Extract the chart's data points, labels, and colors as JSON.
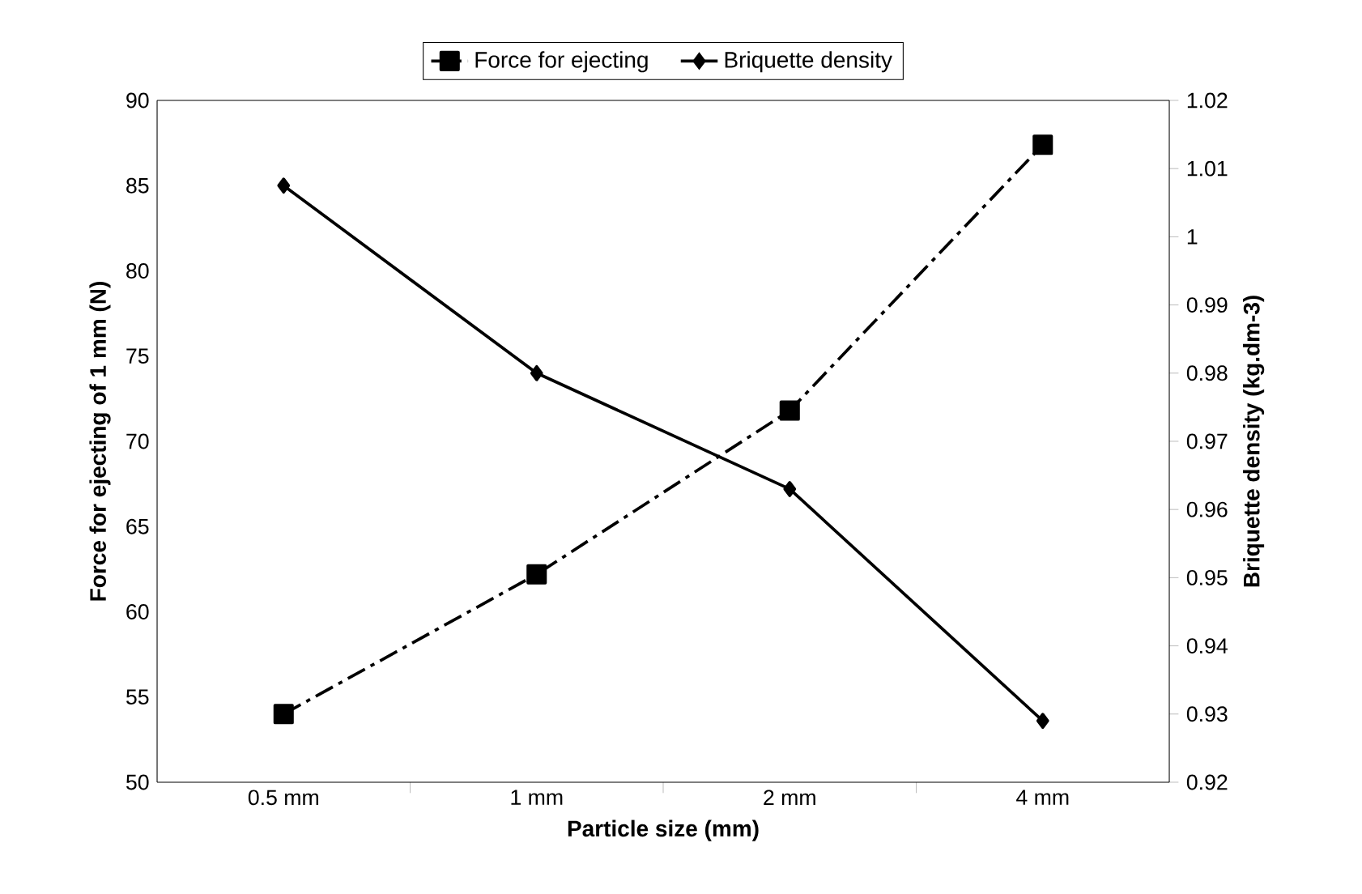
{
  "chart_data": {
    "type": "line",
    "xlabel": "Particle size (mm)",
    "ylabel": "Force for ejecting of 1 mm (N)",
    "y2label": "Briquette density  (kg.dm-3)",
    "categories": [
      "0.5 mm",
      "1 mm",
      "2 mm",
      "4 mm"
    ],
    "series": [
      {
        "name": "Force for ejecting",
        "color": "#000000",
        "values": [
          54,
          62.2,
          71.8,
          87.4
        ],
        "marker": "square",
        "line_style": "dashed"
      },
      {
        "name": "Briquette density",
        "color": "#000000",
        "values": [
          1.0075,
          0.98,
          0.963,
          0.929
        ],
        "marker": "diamond",
        "line_style": "solid",
        "axis": "y2"
      }
    ],
    "ylim": [
      50,
      90
    ],
    "yticks": [
      50,
      55,
      60,
      65,
      70,
      75,
      80,
      85,
      90
    ],
    "y2lim": [
      0.92,
      1.02
    ],
    "y2ticks": [
      0.92,
      0.93,
      0.94,
      0.95,
      0.96,
      0.97,
      0.98,
      0.99,
      1,
      1.01,
      1.02
    ],
    "grid": false,
    "legend": "top"
  }
}
